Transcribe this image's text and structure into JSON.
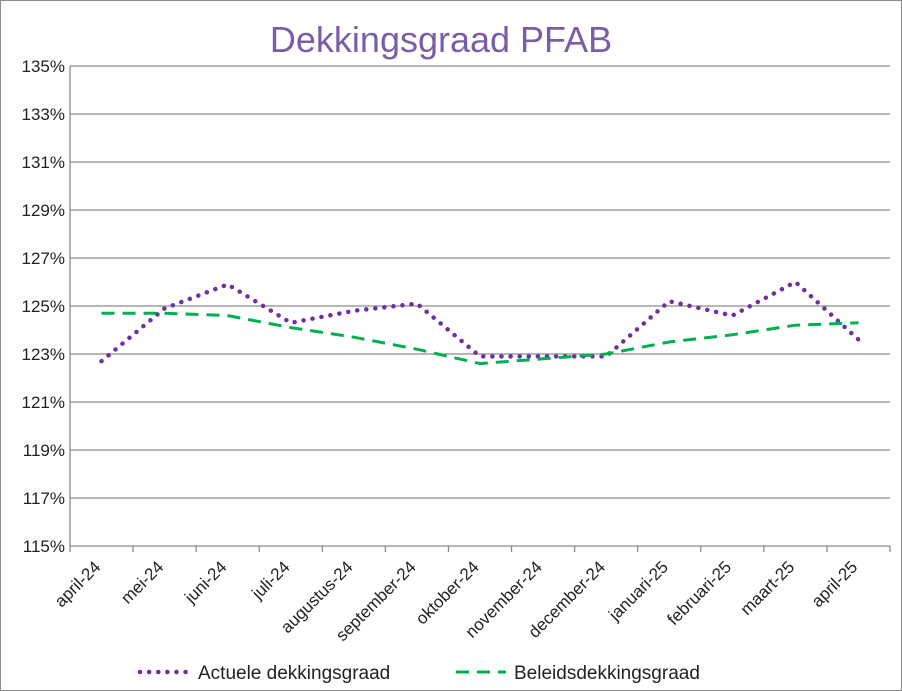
{
  "chart_data": {
    "type": "line",
    "title": "Dekkingsgraad  PFAB",
    "title_color": "#7a5ca8",
    "categories": [
      "april-24",
      "mei-24",
      "juni-24",
      "juli-24",
      "augustus-24",
      "september-24",
      "oktober-24",
      "november-24",
      "december-24",
      "januari-25",
      "februari-25",
      "maart-25",
      "april-25"
    ],
    "yticks": [
      "115%",
      "117%",
      "119%",
      "121%",
      "123%",
      "125%",
      "127%",
      "129%",
      "131%",
      "133%",
      "135%"
    ],
    "ylim": [
      115,
      135
    ],
    "grid": true,
    "legend_position": "bottom",
    "series": [
      {
        "name": "Actuele dekkingsgraad",
        "color": "#7030a0",
        "style": "dotted",
        "values": [
          122.7,
          124.9,
          125.9,
          124.3,
          124.8,
          125.1,
          122.9,
          122.9,
          122.9,
          125.2,
          124.6,
          126.0,
          123.6
        ]
      },
      {
        "name": "Beleidsdekkingsgraad",
        "color": "#00b050",
        "style": "dashed",
        "values": [
          124.7,
          124.7,
          124.6,
          124.1,
          123.7,
          123.2,
          122.6,
          122.8,
          123.0,
          123.5,
          123.8,
          124.2,
          124.3
        ]
      }
    ]
  }
}
